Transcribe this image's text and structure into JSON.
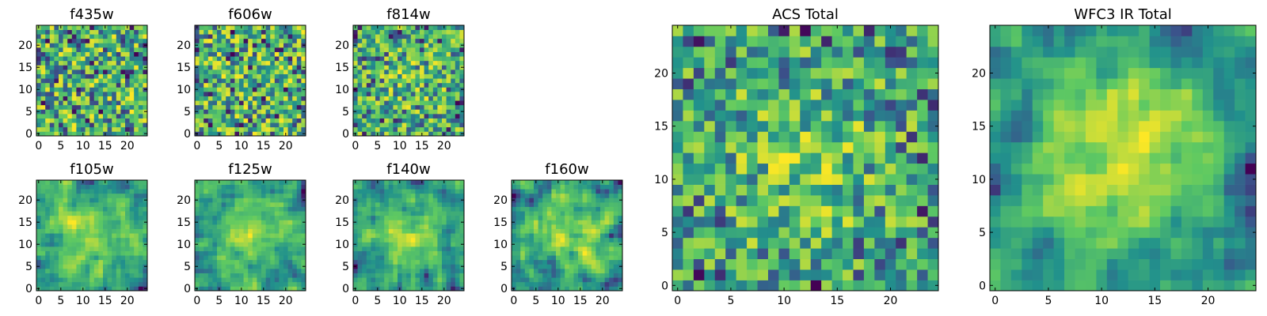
{
  "figure": {
    "colormap": "viridis",
    "colormap_stops": [
      "#440154",
      "#3b528b",
      "#21918c",
      "#5ec962",
      "#fde725"
    ],
    "grid": false
  },
  "chart_data": [
    {
      "type": "heatmap",
      "title": "f435w",
      "size": [
        25,
        25
      ],
      "seed": 11,
      "smoothing": 0,
      "centroid": 0.0,
      "xticks": [
        "0",
        "5",
        "10",
        "15",
        "20"
      ],
      "yticks": [
        "0",
        "5",
        "10",
        "15",
        "20"
      ],
      "xlim": [
        0,
        25
      ],
      "ylim": [
        0,
        25
      ]
    },
    {
      "type": "heatmap",
      "title": "f606w",
      "size": [
        25,
        25
      ],
      "seed": 23,
      "smoothing": 0,
      "centroid": 0.0,
      "xticks": [
        "0",
        "5",
        "10",
        "15",
        "20"
      ],
      "yticks": [
        "0",
        "5",
        "10",
        "15",
        "20"
      ],
      "xlim": [
        0,
        25
      ],
      "ylim": [
        0,
        25
      ]
    },
    {
      "type": "heatmap",
      "title": "f814w",
      "size": [
        25,
        25
      ],
      "seed": 37,
      "smoothing": 0,
      "centroid": 0.15,
      "xticks": [
        "0",
        "5",
        "10",
        "15",
        "20"
      ],
      "yticks": [
        "0",
        "5",
        "10",
        "15",
        "20"
      ],
      "xlim": [
        0,
        25
      ],
      "ylim": [
        0,
        25
      ]
    },
    {
      "type": "heatmap",
      "title": "f105w",
      "size": [
        25,
        25
      ],
      "seed": 41,
      "smoothing": 1,
      "centroid": 0.3,
      "xticks": [
        "0",
        "5",
        "10",
        "15",
        "20"
      ],
      "yticks": [
        "0",
        "5",
        "10",
        "15",
        "20"
      ],
      "xlim": [
        0,
        25
      ],
      "ylim": [
        0,
        25
      ]
    },
    {
      "type": "heatmap",
      "title": "f125w",
      "size": [
        25,
        25
      ],
      "seed": 53,
      "smoothing": 1,
      "centroid": 0.3,
      "xticks": [
        "0",
        "5",
        "10",
        "15",
        "20"
      ],
      "yticks": [
        "0",
        "5",
        "10",
        "15",
        "20"
      ],
      "xlim": [
        0,
        25
      ],
      "ylim": [
        0,
        25
      ]
    },
    {
      "type": "heatmap",
      "title": "f140w",
      "size": [
        25,
        25
      ],
      "seed": 67,
      "smoothing": 1,
      "centroid": 0.3,
      "xticks": [
        "0",
        "5",
        "10",
        "15",
        "20"
      ],
      "yticks": [
        "0",
        "5",
        "10",
        "15",
        "20"
      ],
      "xlim": [
        0,
        25
      ],
      "ylim": [
        0,
        25
      ]
    },
    {
      "type": "heatmap",
      "title": "f160w",
      "size": [
        25,
        25
      ],
      "seed": 79,
      "smoothing": 1,
      "centroid": 0.3,
      "xticks": [
        "0",
        "5",
        "10",
        "15",
        "20"
      ],
      "yticks": [
        "0",
        "5",
        "10",
        "15",
        "20"
      ],
      "xlim": [
        0,
        25
      ],
      "ylim": [
        0,
        25
      ]
    },
    {
      "type": "heatmap",
      "title": "ACS Total",
      "size": [
        25,
        25
      ],
      "seed": 97,
      "smoothing": 0,
      "centroid": 0.35,
      "xticks": [
        "0",
        "5",
        "10",
        "15",
        "20"
      ],
      "yticks": [
        "0",
        "5",
        "10",
        "15",
        "20"
      ],
      "xlim": [
        0,
        25
      ],
      "ylim": [
        0,
        25
      ]
    },
    {
      "type": "heatmap",
      "title": "WFC3 IR Total",
      "size": [
        25,
        25
      ],
      "seed": 113,
      "smoothing": 1,
      "centroid": 0.55,
      "xticks": [
        "0",
        "5",
        "10",
        "15",
        "20"
      ],
      "yticks": [
        "0",
        "5",
        "10",
        "15",
        "20"
      ],
      "xlim": [
        0,
        25
      ],
      "ylim": [
        0,
        25
      ]
    }
  ]
}
